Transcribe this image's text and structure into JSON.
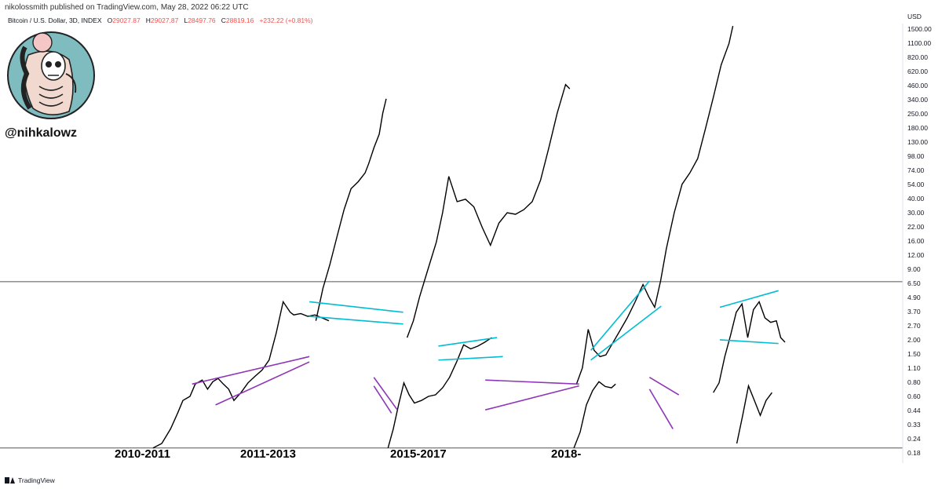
{
  "header": {
    "published_by": "nikolossmith published on TradingView.com, May 28, 2022 06:22 UTC",
    "symbol": "Bitcoin / U.S. Dollar, 3D, INDEX",
    "open_label": "O",
    "open": "29027.87",
    "high_label": "H",
    "high": "29027.87",
    "low_label": "L",
    "low": "28497.76",
    "close_label": "C",
    "close": "28819.16",
    "change": "+232.22 (+0.81%)"
  },
  "author": {
    "handle": "@nihkalowz",
    "avatar_icon": "skeleton-avatar-icon"
  },
  "branding": {
    "logo_icon": "tradingview-logo-icon",
    "logo_text": "TradingView"
  },
  "chart_data": {
    "type": "line",
    "scale": "log",
    "currency": "USD",
    "y_ticks": [
      "1500.00",
      "1100.00",
      "820.00",
      "620.00",
      "460.00",
      "340.00",
      "250.00",
      "180.00",
      "130.00",
      "98.00",
      "74.00",
      "54.00",
      "40.00",
      "30.00",
      "22.00",
      "16.00",
      "12.00",
      "9.00",
      "6.50",
      "4.90",
      "3.70",
      "2.70",
      "2.00",
      "1.50",
      "1.10",
      "0.80",
      "0.60",
      "0.44",
      "0.33",
      "0.24",
      "0.18"
    ],
    "horizontal_lines": [
      6.9,
      0.2
    ],
    "series": [
      {
        "label": "2010-2011",
        "points": [
          [
            0,
            0.2
          ],
          [
            0.05,
            0.22
          ],
          [
            0.1,
            0.3
          ],
          [
            0.14,
            0.42
          ],
          [
            0.17,
            0.55
          ],
          [
            0.21,
            0.6
          ],
          [
            0.24,
            0.78
          ],
          [
            0.28,
            0.85
          ],
          [
            0.31,
            0.7
          ],
          [
            0.34,
            0.82
          ],
          [
            0.37,
            0.88
          ],
          [
            0.4,
            0.78
          ],
          [
            0.43,
            0.7
          ],
          [
            0.46,
            0.55
          ],
          [
            0.5,
            0.65
          ],
          [
            0.54,
            0.8
          ],
          [
            0.58,
            0.92
          ],
          [
            0.62,
            1.05
          ],
          [
            0.66,
            1.3
          ],
          [
            0.7,
            2.3
          ],
          [
            0.74,
            4.5
          ],
          [
            0.78,
            3.6
          ],
          [
            0.8,
            3.4
          ],
          [
            0.84,
            3.5
          ],
          [
            0.88,
            3.3
          ],
          [
            0.92,
            3.4
          ],
          [
            0.96,
            3.2
          ],
          [
            1.0,
            3.0
          ]
        ]
      },
      {
        "label": "2011-2013",
        "points": [
          [
            0,
            3.0
          ],
          [
            0.04,
            6
          ],
          [
            0.08,
            10
          ],
          [
            0.12,
            18
          ],
          [
            0.16,
            32
          ],
          [
            0.2,
            50
          ],
          [
            0.24,
            58
          ],
          [
            0.28,
            70
          ],
          [
            0.3,
            85
          ],
          [
            0.33,
            120
          ],
          [
            0.36,
            160
          ],
          [
            0.38,
            250
          ],
          [
            0.4,
            340
          ],
          [
            0.41,
            0.2
          ],
          [
            0.44,
            0.3
          ],
          [
            0.47,
            0.5
          ],
          [
            0.5,
            0.8
          ],
          [
            0.53,
            0.62
          ],
          [
            0.56,
            0.52
          ],
          [
            0.6,
            0.55
          ],
          [
            0.64,
            0.6
          ],
          [
            0.68,
            0.62
          ],
          [
            0.72,
            0.72
          ],
          [
            0.76,
            0.9
          ],
          [
            0.8,
            1.25
          ],
          [
            0.84,
            1.8
          ],
          [
            0.88,
            1.65
          ],
          [
            0.92,
            1.75
          ],
          [
            0.96,
            1.9
          ],
          [
            1.0,
            2.1
          ]
        ]
      },
      {
        "label": "2015-2017",
        "points": [
          [
            0,
            2.1
          ],
          [
            0.03,
            3
          ],
          [
            0.06,
            5
          ],
          [
            0.1,
            9
          ],
          [
            0.14,
            16
          ],
          [
            0.17,
            30
          ],
          [
            0.2,
            65
          ],
          [
            0.24,
            38
          ],
          [
            0.28,
            40
          ],
          [
            0.32,
            34
          ],
          [
            0.36,
            22
          ],
          [
            0.4,
            15
          ],
          [
            0.44,
            24
          ],
          [
            0.48,
            30
          ],
          [
            0.52,
            29
          ],
          [
            0.56,
            32
          ],
          [
            0.6,
            38
          ],
          [
            0.64,
            60
          ],
          [
            0.68,
            120
          ],
          [
            0.72,
            250
          ],
          [
            0.76,
            460
          ],
          [
            0.78,
            420
          ],
          [
            0.8,
            0.2
          ],
          [
            0.83,
            0.28
          ],
          [
            0.86,
            0.5
          ],
          [
            0.89,
            0.68
          ],
          [
            0.92,
            0.82
          ],
          [
            0.95,
            0.74
          ],
          [
            0.98,
            0.72
          ],
          [
            1.0,
            0.78
          ]
        ]
      },
      {
        "label": "2018-",
        "points": [
          [
            0,
            0.78
          ],
          [
            0.03,
            1.1
          ],
          [
            0.06,
            2.5
          ],
          [
            0.09,
            1.6
          ],
          [
            0.12,
            1.4
          ],
          [
            0.15,
            1.45
          ],
          [
            0.18,
            1.8
          ],
          [
            0.22,
            2.4
          ],
          [
            0.26,
            3.2
          ],
          [
            0.3,
            4.5
          ],
          [
            0.34,
            6.5
          ],
          [
            0.37,
            5
          ],
          [
            0.4,
            4
          ],
          [
            0.43,
            7
          ],
          [
            0.46,
            14
          ],
          [
            0.5,
            30
          ],
          [
            0.54,
            55
          ],
          [
            0.58,
            70
          ],
          [
            0.62,
            95
          ],
          [
            0.66,
            180
          ],
          [
            0.7,
            350
          ],
          [
            0.74,
            700
          ],
          [
            0.78,
            1100
          ],
          [
            0.8,
            1600
          ],
          [
            0.82,
            0.22
          ],
          [
            0.85,
            0.4
          ],
          [
            0.88,
            0.75
          ],
          [
            0.91,
            0.55
          ],
          [
            0.94,
            0.4
          ],
          [
            0.97,
            0.55
          ],
          [
            1.0,
            0.65
          ]
        ]
      },
      {
        "label": "",
        "points": [
          [
            0,
            0.65
          ],
          [
            0.08,
            0.8
          ],
          [
            0.16,
            1.4
          ],
          [
            0.24,
            2.2
          ],
          [
            0.32,
            3.6
          ],
          [
            0.4,
            4.3
          ],
          [
            0.48,
            2.1
          ],
          [
            0.56,
            3.8
          ],
          [
            0.64,
            4.5
          ],
          [
            0.72,
            3.2
          ],
          [
            0.8,
            2.9
          ],
          [
            0.88,
            3.0
          ],
          [
            0.94,
            2.1
          ],
          [
            1.0,
            1.9
          ]
        ]
      }
    ],
    "cycle_labels": [
      "2010-2011",
      "2011-2013",
      "2015-2017",
      "2018-"
    ],
    "trendlines": [
      {
        "color": "#8e35b8",
        "from": [
          0.1,
          0.78
        ],
        "to": [
          0.3,
          1.4
        ]
      },
      {
        "color": "#8e35b8",
        "from": [
          0.14,
          0.5
        ],
        "to": [
          0.3,
          1.25
        ]
      },
      {
        "color": "#00bcd4",
        "from": [
          0.3,
          4.5
        ],
        "to": [
          0.46,
          3.6
        ]
      },
      {
        "color": "#00bcd4",
        "from": [
          0.3,
          3.3
        ],
        "to": [
          0.46,
          2.8
        ]
      },
      {
        "color": "#8e35b8",
        "from": [
          0.41,
          0.9
        ],
        "to": [
          0.45,
          0.45
        ]
      },
      {
        "color": "#8e35b8",
        "from": [
          0.41,
          0.75
        ],
        "to": [
          0.44,
          0.42
        ]
      },
      {
        "color": "#00bcd4",
        "from": [
          0.52,
          1.75
        ],
        "to": [
          0.62,
          2.1
        ]
      },
      {
        "color": "#00bcd4",
        "from": [
          0.52,
          1.3
        ],
        "to": [
          0.63,
          1.4
        ]
      },
      {
        "color": "#8e35b8",
        "from": [
          0.6,
          0.85
        ],
        "to": [
          0.76,
          0.78
        ]
      },
      {
        "color": "#8e35b8",
        "from": [
          0.6,
          0.45
        ],
        "to": [
          0.76,
          0.75
        ]
      },
      {
        "color": "#00bcd4",
        "from": [
          0.78,
          1.6
        ],
        "to": [
          0.88,
          7
        ]
      },
      {
        "color": "#00bcd4",
        "from": [
          0.78,
          1.3
        ],
        "to": [
          0.9,
          4.1
        ]
      },
      {
        "color": "#8e35b8",
        "from": [
          0.88,
          0.9
        ],
        "to": [
          0.93,
          0.62
        ]
      },
      {
        "color": "#8e35b8",
        "from": [
          0.88,
          0.7
        ],
        "to": [
          0.92,
          0.3
        ]
      },
      {
        "color": "#00bcd4",
        "from": [
          1.0,
          4.0
        ],
        "to": [
          1.1,
          5.7
        ]
      },
      {
        "color": "#00bcd4",
        "from": [
          1.0,
          2.0
        ],
        "to": [
          1.1,
          1.85
        ]
      }
    ],
    "line_color": "#000000",
    "hline_color": "#555555",
    "grid": false
  }
}
